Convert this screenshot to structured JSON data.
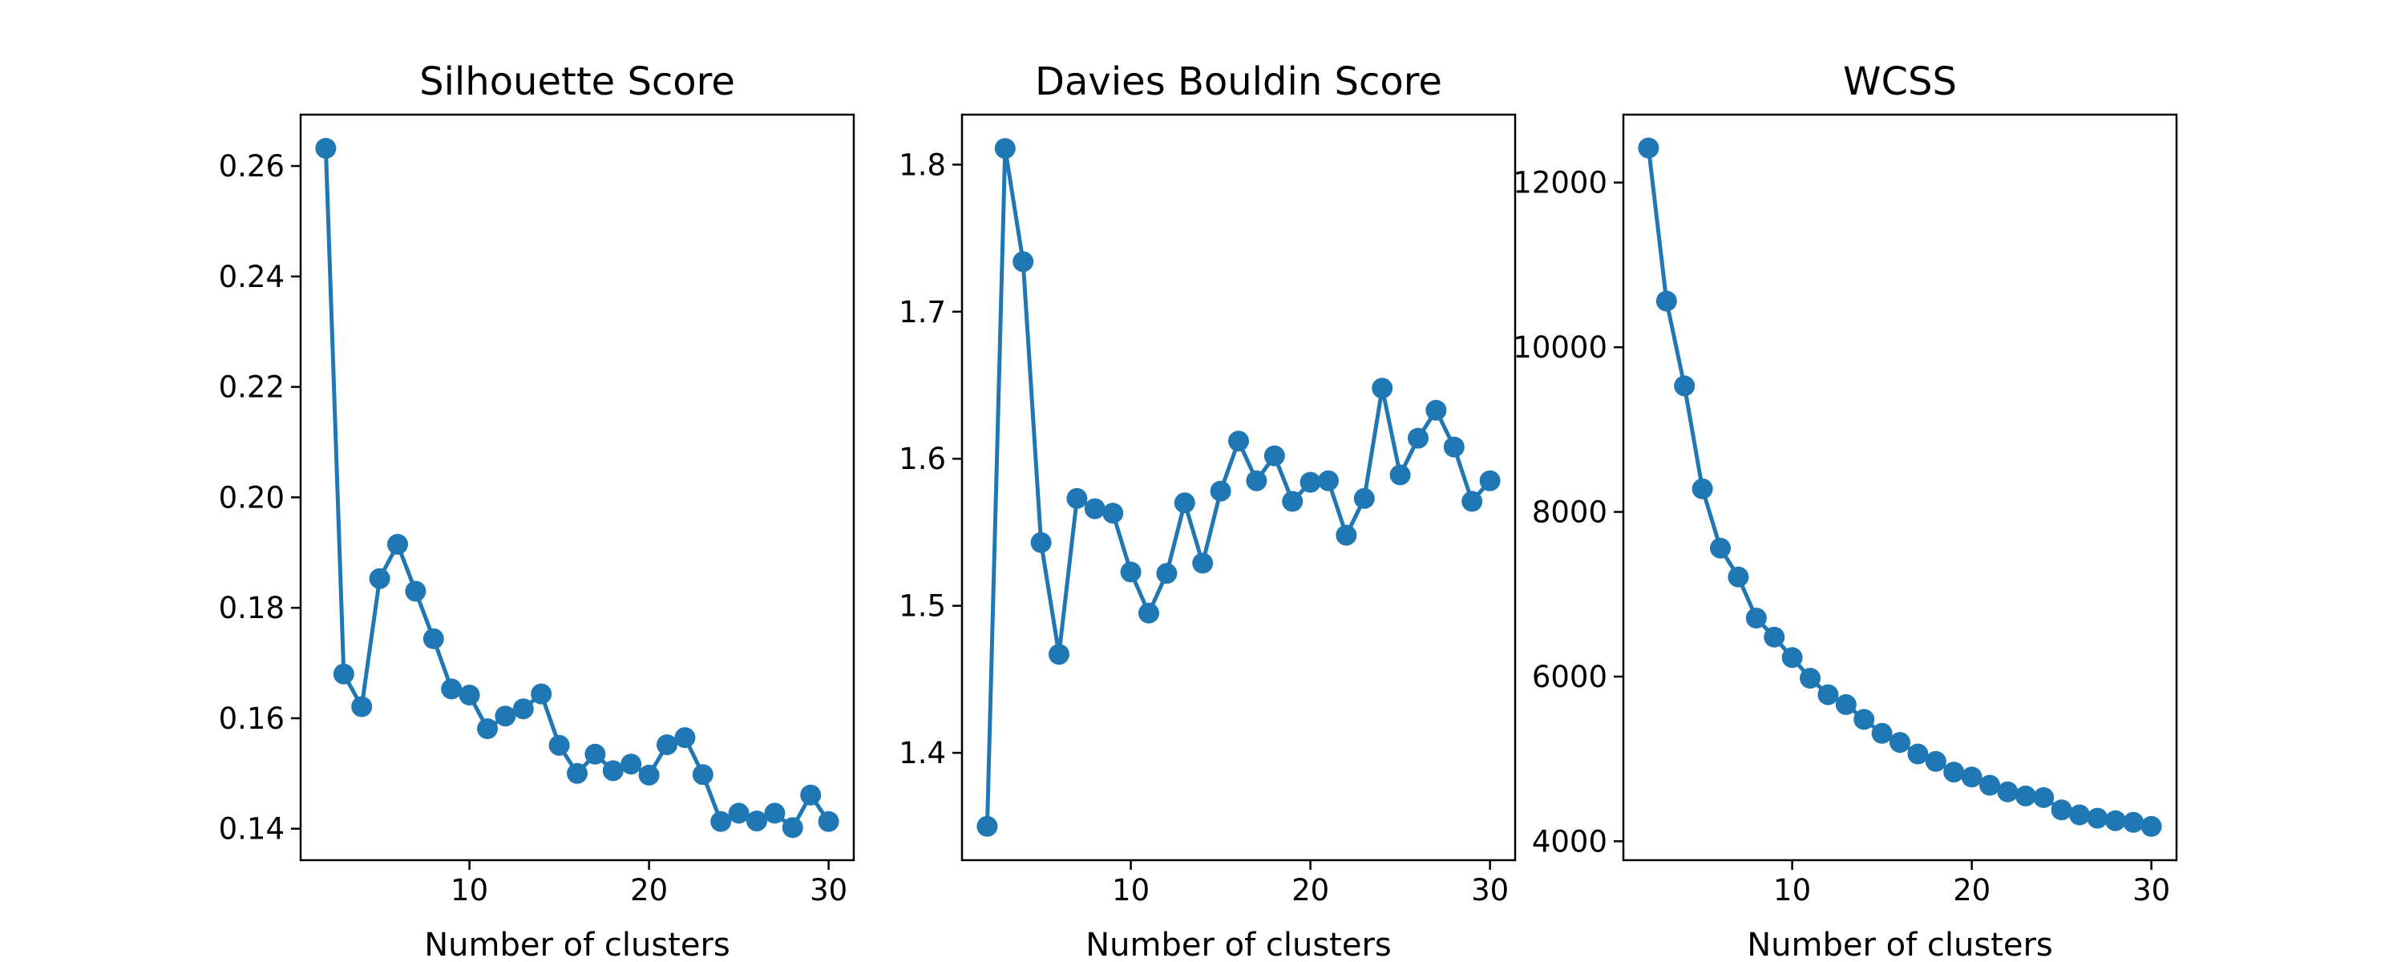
{
  "chart_data": [
    {
      "type": "line",
      "title": "Silhouette Score",
      "xlabel": "Number of clusters",
      "ylabel": "",
      "xlim": [
        0.6,
        31.4
      ],
      "ylim": [
        0.1343,
        0.2693
      ],
      "xticks": [
        10,
        20,
        30
      ],
      "yticks": [
        0.14,
        0.16,
        0.18,
        0.2,
        0.22,
        0.24,
        0.26
      ],
      "ytick_labels": [
        "0.14",
        "0.16",
        "0.18",
        "0.20",
        "0.22",
        "0.24",
        "0.26"
      ],
      "grid": false,
      "markers": true,
      "color": "#1f77b4",
      "x": [
        2,
        3,
        4,
        5,
        6,
        7,
        8,
        9,
        10,
        11,
        12,
        13,
        14,
        15,
        16,
        17,
        18,
        19,
        20,
        21,
        22,
        23,
        24,
        25,
        26,
        27,
        28,
        29,
        30
      ],
      "y": [
        0.2632,
        0.168,
        0.1621,
        0.1853,
        0.1915,
        0.183,
        0.1744,
        0.1653,
        0.1642,
        0.1581,
        0.1604,
        0.1617,
        0.1644,
        0.1551,
        0.15,
        0.1535,
        0.1505,
        0.1517,
        0.1497,
        0.1552,
        0.1565,
        0.1498,
        0.1413,
        0.1428,
        0.1414,
        0.1428,
        0.1402,
        0.1461,
        0.1413
      ]
    },
    {
      "type": "line",
      "title": "Davies Bouldin Score",
      "xlabel": "Number of clusters",
      "ylabel": "",
      "xlim": [
        0.6,
        31.4
      ],
      "ylim": [
        1.327,
        1.834
      ],
      "xticks": [
        10,
        20,
        30
      ],
      "yticks": [
        1.4,
        1.5,
        1.6,
        1.7,
        1.8
      ],
      "ytick_labels": [
        "1.4",
        "1.5",
        "1.6",
        "1.7",
        "1.8"
      ],
      "grid": false,
      "markers": true,
      "color": "#1f77b4",
      "x": [
        2,
        3,
        4,
        5,
        6,
        7,
        8,
        9,
        10,
        11,
        12,
        13,
        14,
        15,
        16,
        17,
        18,
        19,
        20,
        21,
        22,
        23,
        24,
        25,
        26,
        27,
        28,
        29,
        30
      ],
      "y": [
        1.35,
        1.811,
        1.734,
        1.543,
        1.467,
        1.573,
        1.566,
        1.563,
        1.523,
        1.495,
        1.522,
        1.57,
        1.529,
        1.578,
        1.612,
        1.585,
        1.602,
        1.571,
        1.584,
        1.585,
        1.548,
        1.573,
        1.648,
        1.589,
        1.614,
        1.633,
        1.608,
        1.571,
        1.585
      ]
    },
    {
      "type": "line",
      "title": "WCSS",
      "xlabel": "Number of clusters",
      "ylabel": "",
      "xlim": [
        0.6,
        31.4
      ],
      "ylim": [
        3770,
        12825
      ],
      "xticks": [
        10,
        20,
        30
      ],
      "yticks": [
        4000,
        6000,
        8000,
        10000,
        12000
      ],
      "ytick_labels": [
        "4000",
        "6000",
        "8000",
        "10000",
        "12000"
      ],
      "grid": false,
      "markers": true,
      "color": "#1f77b4",
      "x": [
        2,
        3,
        4,
        5,
        6,
        7,
        8,
        9,
        10,
        11,
        12,
        13,
        14,
        15,
        16,
        17,
        18,
        19,
        20,
        21,
        22,
        23,
        24,
        25,
        26,
        27,
        28,
        29,
        30
      ],
      "y": [
        12420,
        10560,
        9530,
        8280,
        7560,
        7210,
        6710,
        6480,
        6230,
        5980,
        5780,
        5660,
        5480,
        5310,
        5200,
        5060,
        4970,
        4840,
        4780,
        4680,
        4600,
        4550,
        4530,
        4380,
        4320,
        4280,
        4250,
        4230,
        4180
      ]
    }
  ]
}
